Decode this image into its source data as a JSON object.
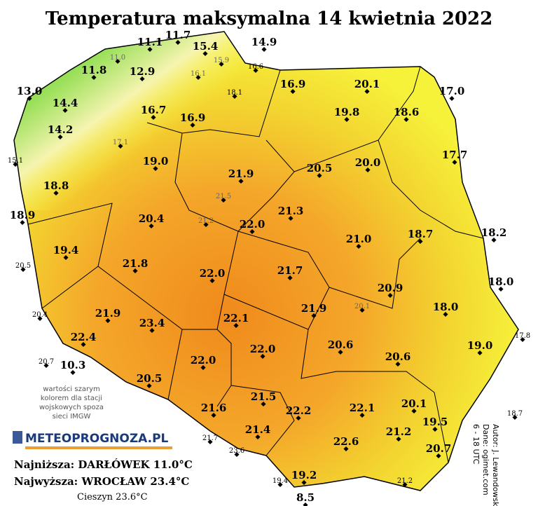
{
  "title": "Temperatura maksymalna 14 kwietnia 2022",
  "stations": [
    "11.7",
    "11.1",
    "15.4",
    "14.9",
    "11.0",
    "15.9",
    "16.6",
    "16.1",
    "11.8",
    "12.9",
    "18.1",
    "13.0",
    "16.9",
    "20.1",
    "17.0",
    "14.4",
    "16.7",
    "19.8",
    "18.6",
    "16.9",
    "14.2",
    "17.1",
    "17.7",
    "15.1",
    "19.0",
    "20.5",
    "20.0",
    "21.9",
    "18.8",
    "21.5",
    "18.9",
    "21.3",
    "20.4",
    "21.2",
    "22.0",
    "18.7",
    "18.2",
    "21.0",
    "19.4",
    "20.5",
    "21.8",
    "22.0",
    "21.7",
    "18.0",
    "20.9",
    "21.9",
    "20.1",
    "18.0",
    "20.4",
    "21.9",
    "23.4",
    "22.1",
    "17.8",
    "22.4",
    "20.6",
    "19.0",
    "22.0",
    "20.6",
    "20.7",
    "10.3",
    "22.0",
    "20.5",
    "21.5",
    "20.1",
    "21.6",
    "22.2",
    "22.1",
    "18.7",
    "19.5",
    "21.2",
    "21.7",
    "21.4",
    "22.6",
    "23.6",
    "20.7",
    "19.2",
    "19.4",
    "21.2",
    "8.5"
  ],
  "note": [
    "wartości szarym",
    "kolorem dla stacji",
    "wojskowych spoza",
    "sieci IMGW"
  ],
  "logo": "METEOPROGNOZA.PL",
  "lowest": "Najniższa: DARŁÓWEK 11.0°C",
  "highest": "Najwyższa: WROCŁAW 23.4°C",
  "highest_note": "Cieszyn 23.6°C",
  "credits": [
    "Autor: J. Lewandowski",
    "Dane: ogimet.com",
    "6 - 18 UTC"
  ]
}
